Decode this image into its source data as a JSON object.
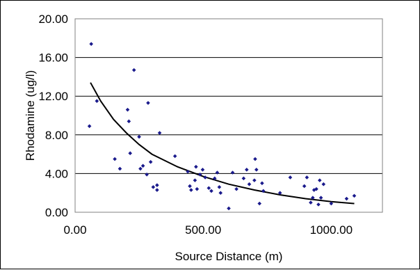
{
  "chart_data": {
    "type": "scatter",
    "title": "",
    "xlabel": "Source Distance (m)",
    "ylabel": "Rhodamine (ug/l)",
    "xlim": [
      0,
      1200
    ],
    "ylim": [
      0,
      20
    ],
    "x_ticks": [
      0,
      500,
      1000
    ],
    "x_tick_labels": [
      "0.00",
      "500.00",
      "1000.00"
    ],
    "y_ticks": [
      0,
      4,
      8,
      12,
      16,
      20
    ],
    "y_tick_labels": [
      "0.00",
      "4.00",
      "8.00",
      "12.00",
      "16.00",
      "20.00"
    ],
    "grid": "horizontal major gridlines",
    "legend": "none",
    "colors": {
      "points": "#1a1a8c",
      "trend": "#000000",
      "grid": "#000000"
    },
    "series": [
      {
        "type": "scatter",
        "points": [
          [
            56,
            8.9
          ],
          [
            63,
            17.4
          ],
          [
            85,
            11.5
          ],
          [
            155,
            5.5
          ],
          [
            175,
            4.5
          ],
          [
            205,
            10.6
          ],
          [
            210,
            9.4
          ],
          [
            215,
            6.1
          ],
          [
            230,
            14.7
          ],
          [
            250,
            7.8
          ],
          [
            255,
            4.5
          ],
          [
            265,
            4.8
          ],
          [
            280,
            3.9
          ],
          [
            285,
            11.3
          ],
          [
            295,
            5.2
          ],
          [
            305,
            2.6
          ],
          [
            320,
            2.3
          ],
          [
            320,
            2.8
          ],
          [
            330,
            8.2
          ],
          [
            390,
            5.8
          ],
          [
            440,
            4.2
          ],
          [
            448,
            2.7
          ],
          [
            453,
            2.3
          ],
          [
            468,
            3.3
          ],
          [
            472,
            4.7
          ],
          [
            476,
            2.4
          ],
          [
            488,
            3.9
          ],
          [
            498,
            4.4
          ],
          [
            508,
            3.6
          ],
          [
            522,
            2.5
          ],
          [
            532,
            2.2
          ],
          [
            545,
            3.5
          ],
          [
            555,
            4.1
          ],
          [
            563,
            2.6
          ],
          [
            568,
            2.0
          ],
          [
            600,
            0.4
          ],
          [
            615,
            4.1
          ],
          [
            630,
            2.4
          ],
          [
            658,
            3.5
          ],
          [
            670,
            4.4
          ],
          [
            680,
            2.9
          ],
          [
            700,
            3.3
          ],
          [
            703,
            5.5
          ],
          [
            708,
            4.4
          ],
          [
            720,
            0.9
          ],
          [
            730,
            3.0
          ],
          [
            735,
            2.2
          ],
          [
            800,
            2.0
          ],
          [
            840,
            3.6
          ],
          [
            895,
            2.7
          ],
          [
            905,
            3.6
          ],
          [
            920,
            1.0
          ],
          [
            928,
            1.5
          ],
          [
            933,
            2.3
          ],
          [
            942,
            2.4
          ],
          [
            950,
            0.8
          ],
          [
            955,
            3.3
          ],
          [
            960,
            1.5
          ],
          [
            970,
            2.9
          ],
          [
            1000,
            0.9
          ],
          [
            1060,
            1.4
          ],
          [
            1090,
            1.7
          ]
        ]
      },
      {
        "type": "line",
        "name": "",
        "points": [
          [
            60,
            13.4
          ],
          [
            100,
            11.5
          ],
          [
            150,
            9.6
          ],
          [
            200,
            8.2
          ],
          [
            250,
            7.0
          ],
          [
            300,
            6.0
          ],
          [
            400,
            4.7
          ],
          [
            500,
            3.7
          ],
          [
            600,
            2.9
          ],
          [
            700,
            2.3
          ],
          [
            800,
            1.8
          ],
          [
            900,
            1.4
          ],
          [
            1000,
            1.1
          ],
          [
            1090,
            0.9
          ]
        ]
      }
    ]
  }
}
